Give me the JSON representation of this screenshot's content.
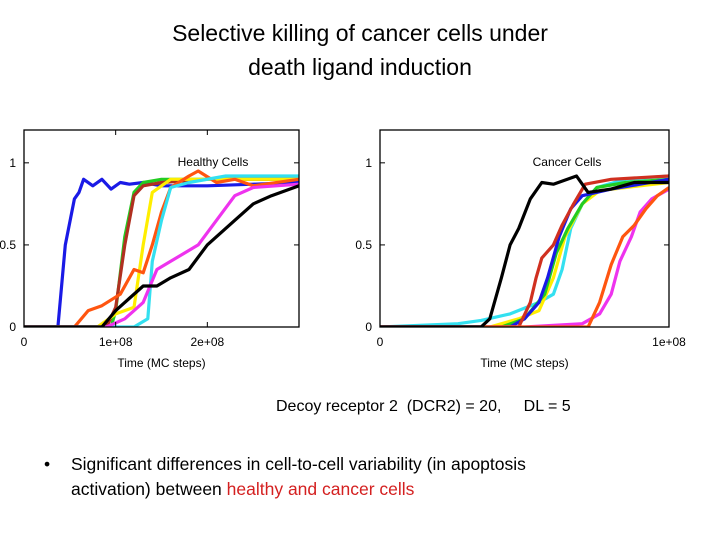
{
  "title": {
    "line1": "Selective killing of cancer cells under",
    "line2": "death ligand induction"
  },
  "caption": "Decoy receptor 2  (DCR2) = 20,     DL = 5",
  "bullet": {
    "symbol": "•",
    "line1": "Significant differences in cell-to-cell variability (in apoptosis",
    "line2_prefix": "activation) between ",
    "line2_highlight": "healthy and cancer cells",
    "highlight_color": "#d42020"
  },
  "chart_data": [
    {
      "type": "line",
      "title": "Healthy Cells",
      "xlabel": "Time (MC steps)",
      "ylabel": "",
      "xlim": [
        0,
        300000000
      ],
      "ylim": [
        0,
        1.2
      ],
      "xticks": [
        {
          "v": 0,
          "label": "0"
        },
        {
          "v": 100000000,
          "label": "1e+08"
        },
        {
          "v": 200000000,
          "label": "2e+08"
        }
      ],
      "yticks": [
        {
          "v": 0,
          "label": "0"
        },
        {
          "v": 0.5,
          "label": "0.5"
        },
        {
          "v": 1,
          "label": "1"
        }
      ],
      "grid": false,
      "series": [
        {
          "color": "#1a1ae6",
          "x": [
            0,
            0.37,
            0.45,
            0.55,
            0.6,
            0.65,
            0.75,
            0.85,
            0.95,
            1.05,
            1.15,
            1.3,
            1.5,
            2.0,
            2.5,
            3.0
          ],
          "y": [
            0,
            0,
            0.5,
            0.78,
            0.82,
            0.9,
            0.86,
            0.9,
            0.84,
            0.88,
            0.87,
            0.88,
            0.86,
            0.86,
            0.87,
            0.88
          ]
        },
        {
          "color": "#22cc22",
          "x": [
            0,
            0.95,
            1.0,
            1.1,
            1.2,
            1.3,
            1.5,
            2.0,
            3.0
          ],
          "y": [
            0,
            0,
            0.1,
            0.55,
            0.82,
            0.88,
            0.9,
            0.9,
            0.9
          ]
        },
        {
          "color": "#b03020",
          "x": [
            0,
            0.9,
            1.0,
            1.1,
            1.2,
            1.3,
            1.5,
            2.0,
            3.0
          ],
          "y": [
            0,
            0,
            0.12,
            0.5,
            0.8,
            0.86,
            0.88,
            0.9,
            0.9
          ]
        },
        {
          "color": "#ffee00",
          "x": [
            0,
            0.8,
            1.0,
            1.2,
            1.3,
            1.4,
            1.6,
            2.0,
            3.0
          ],
          "y": [
            0,
            0,
            0.08,
            0.12,
            0.5,
            0.82,
            0.9,
            0.9,
            0.9
          ]
        },
        {
          "color": "#ff5510",
          "x": [
            0,
            0.55,
            0.7,
            0.85,
            1.05,
            1.2,
            1.3,
            1.4,
            1.5,
            1.6,
            1.8,
            1.9,
            2.1,
            2.3,
            2.5,
            3.0
          ],
          "y": [
            0,
            0,
            0.1,
            0.13,
            0.2,
            0.35,
            0.33,
            0.5,
            0.7,
            0.85,
            0.92,
            0.95,
            0.88,
            0.9,
            0.86,
            0.9
          ]
        },
        {
          "color": "#33e0f0",
          "x": [
            0,
            1.2,
            1.35,
            1.4,
            1.5,
            1.6,
            1.8,
            2.2,
            3.0
          ],
          "y": [
            0,
            0,
            0.05,
            0.4,
            0.65,
            0.85,
            0.88,
            0.92,
            0.92
          ]
        },
        {
          "color": "#ee33ee",
          "x": [
            0,
            0.9,
            1.1,
            1.3,
            1.45,
            1.6,
            1.9,
            2.1,
            2.3,
            2.5,
            3.0
          ],
          "y": [
            0,
            0,
            0.05,
            0.15,
            0.35,
            0.4,
            0.5,
            0.65,
            0.8,
            0.85,
            0.87
          ]
        },
        {
          "color": "#000000",
          "x": [
            0,
            0.85,
            1.0,
            1.1,
            1.3,
            1.45,
            1.6,
            1.8,
            2.0,
            2.1,
            2.3,
            2.5,
            2.7,
            2.9,
            3.0
          ],
          "y": [
            0,
            0,
            0.1,
            0.15,
            0.25,
            0.25,
            0.3,
            0.35,
            0.5,
            0.55,
            0.65,
            0.75,
            0.8,
            0.84,
            0.86
          ]
        }
      ]
    },
    {
      "type": "line",
      "title": "Cancer Cells",
      "xlabel": "Time (MC steps)",
      "ylabel": "",
      "xlim": [
        0,
        100000000
      ],
      "ylim": [
        0,
        1.2
      ],
      "xticks": [
        {
          "v": 0,
          "label": "0"
        },
        {
          "v": 100000000,
          "label": "1e+08"
        }
      ],
      "yticks": [
        {
          "v": 0,
          "label": "0"
        },
        {
          "v": 0.5,
          "label": "0.5"
        },
        {
          "v": 1,
          "label": "1"
        }
      ],
      "grid": false,
      "series": [
        {
          "color": "#33e0f0",
          "x": [
            0,
            0.27,
            0.35,
            0.45,
            0.55,
            0.6,
            0.63,
            0.66,
            0.7,
            0.75,
            0.85,
            1.0
          ],
          "y": [
            0,
            0.02,
            0.04,
            0.08,
            0.15,
            0.2,
            0.35,
            0.6,
            0.75,
            0.85,
            0.9,
            0.92
          ]
        },
        {
          "color": "#ffee00",
          "x": [
            0,
            0.38,
            0.48,
            0.55,
            0.6,
            0.64,
            0.7,
            0.76,
            0.85,
            1.0
          ],
          "y": [
            0,
            0,
            0.05,
            0.1,
            0.3,
            0.55,
            0.75,
            0.83,
            0.85,
            0.88
          ]
        },
        {
          "color": "#22cc22",
          "x": [
            0,
            0.42,
            0.5,
            0.57,
            0.61,
            0.65,
            0.7,
            0.75,
            0.85,
            1.0
          ],
          "y": [
            0,
            0,
            0.05,
            0.2,
            0.45,
            0.6,
            0.75,
            0.85,
            0.88,
            0.9
          ]
        },
        {
          "color": "#1a1ae6",
          "x": [
            0,
            0.45,
            0.5,
            0.55,
            0.58,
            0.62,
            0.66,
            0.7,
            0.8,
            0.9,
            1.0
          ],
          "y": [
            0,
            0,
            0.05,
            0.15,
            0.3,
            0.55,
            0.72,
            0.8,
            0.84,
            0.87,
            0.9
          ]
        },
        {
          "color": "#d03020",
          "x": [
            0,
            0.48,
            0.52,
            0.54,
            0.56,
            0.6,
            0.63,
            0.67,
            0.71,
            0.8,
            1.0
          ],
          "y": [
            0,
            0,
            0.15,
            0.3,
            0.42,
            0.5,
            0.62,
            0.75,
            0.87,
            0.9,
            0.92
          ]
        },
        {
          "color": "#ee33ee",
          "x": [
            0,
            0.5,
            0.7,
            0.76,
            0.8,
            0.83,
            0.87,
            0.9,
            0.94,
            1.0
          ],
          "y": [
            0,
            0,
            0.02,
            0.08,
            0.2,
            0.4,
            0.55,
            0.7,
            0.78,
            0.84
          ]
        },
        {
          "color": "#ff5510",
          "x": [
            0,
            0.72,
            0.76,
            0.8,
            0.84,
            0.88,
            0.92,
            0.96,
            1.0
          ],
          "y": [
            0,
            0,
            0.15,
            0.38,
            0.55,
            0.62,
            0.72,
            0.8,
            0.85
          ]
        },
        {
          "color": "#000000",
          "x": [
            0,
            0.35,
            0.38,
            0.42,
            0.45,
            0.48,
            0.52,
            0.56,
            0.6,
            0.68,
            0.72,
            0.8,
            0.88,
            1.0
          ],
          "y": [
            0,
            0,
            0.05,
            0.3,
            0.5,
            0.6,
            0.78,
            0.88,
            0.87,
            0.92,
            0.82,
            0.84,
            0.88,
            0.88
          ]
        }
      ]
    }
  ]
}
